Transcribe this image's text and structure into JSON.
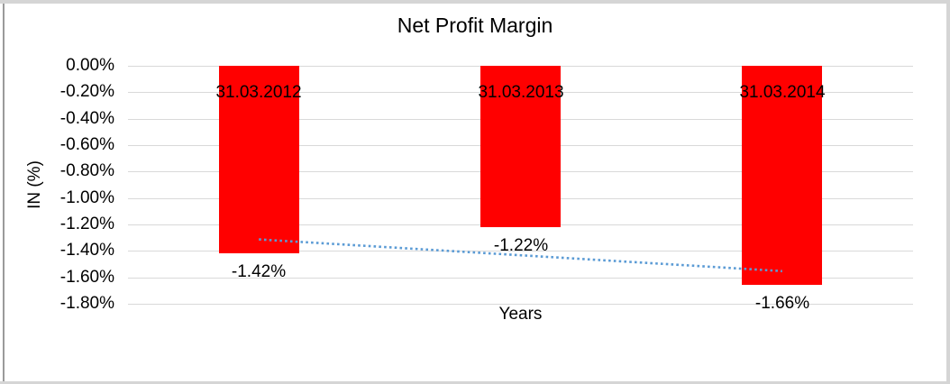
{
  "chart_data": {
    "type": "bar",
    "title": "Net Profit Margin",
    "xlabel": "Years",
    "ylabel": "IN (%)",
    "categories": [
      "31.03.2012",
      "31.03.2013",
      "31.03.2014"
    ],
    "values": [
      -1.42,
      -1.22,
      -1.66
    ],
    "data_labels": [
      "-1.42%",
      "-1.22%",
      "-1.66%"
    ],
    "y_ticks": [
      "0.00%",
      "-0.20%",
      "-0.40%",
      "-0.60%",
      "-0.80%",
      "-1.00%",
      "-1.20%",
      "-1.40%",
      "-1.60%",
      "-1.80%"
    ],
    "ylim": [
      -1.8,
      0
    ],
    "grid": true,
    "legend": "none",
    "bar_color": "#FF0000",
    "gridline_color": "#D9D9D9",
    "text_color": "#000000",
    "trendline": {
      "type": "linear",
      "style": "dotted",
      "color": "#5B9BD5",
      "start_value": -1.313,
      "end_value": -1.553
    },
    "frame_border_color": "#D5D5D5",
    "frame_left_edge_color": "#9A9A9A"
  }
}
